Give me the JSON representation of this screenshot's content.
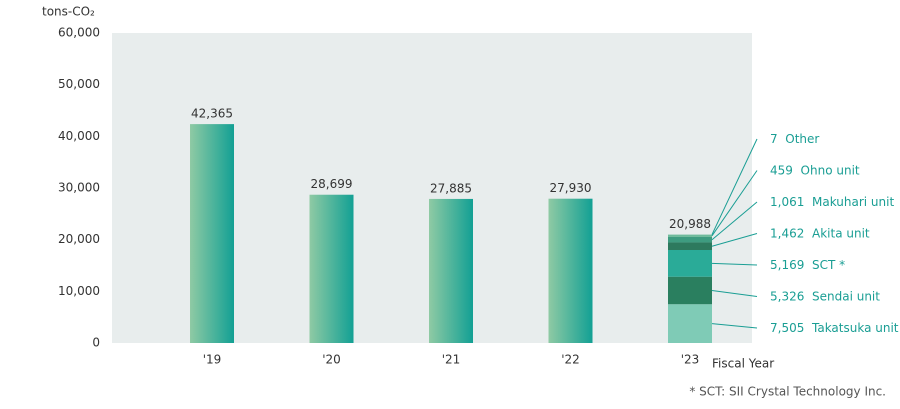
{
  "chart_data": {
    "type": "bar",
    "y_label": "tons-CO₂",
    "x_label": "Fiscal Year",
    "footnote": "* SCT: SII Crystal Technology Inc.",
    "categories": [
      "'19",
      "'20",
      "'21",
      "'22",
      "'23"
    ],
    "values": [
      42365,
      28699,
      27885,
      27930,
      20988
    ],
    "value_labels": [
      "42,365",
      "28,699",
      "27,885",
      "27,930",
      "20,988"
    ],
    "color": [
      "#8fcaa4",
      "#12a094"
    ],
    "ylim": [
      0,
      60000
    ],
    "yticks": [
      0,
      {
        "value": 10000,
        "label": "10,000"
      },
      {
        "value": 20000,
        "label": "20,000"
      },
      {
        "value": 30000,
        "label": "30,000"
      },
      {
        "value": 40000,
        "label": "40,000"
      },
      {
        "value": 50000,
        "label": "50,000"
      },
      {
        "value": 60000,
        "label": "60,000"
      }
    ],
    "grid": false,
    "series": [
      {
        "name": "Takatsuka unit",
        "color": "#7fcbb6",
        "values": [
          null,
          null,
          null,
          null,
          7505
        ],
        "value_labels": [
          null,
          null,
          null,
          null,
          "7,505"
        ]
      },
      {
        "name": "Sendai unit",
        "color": "#2a7f5f",
        "values": [
          null,
          null,
          null,
          null,
          5326
        ],
        "value_labels": [
          null,
          null,
          null,
          null,
          "5,326"
        ]
      },
      {
        "name": "SCT *",
        "color": "#2aab98",
        "values": [
          null,
          null,
          null,
          null,
          5169
        ],
        "value_labels": [
          null,
          null,
          null,
          null,
          "5,169"
        ]
      },
      {
        "name": "Akita unit",
        "color": "#2d7a5e",
        "values": [
          null,
          null,
          null,
          null,
          1462
        ],
        "value_labels": [
          null,
          null,
          null,
          null,
          "1,462"
        ]
      },
      {
        "name": "Makuhari unit",
        "color": "#3e9c80",
        "values": [
          null,
          null,
          null,
          null,
          1061
        ],
        "value_labels": [
          null,
          null,
          null,
          null,
          "1,061"
        ]
      },
      {
        "name": "Ohno unit",
        "color": "#6fbb9c",
        "values": [
          null,
          null,
          null,
          null,
          459
        ],
        "value_labels": [
          null,
          null,
          null,
          null,
          "459"
        ]
      },
      {
        "name": "Other",
        "color": "#9ed6c3",
        "values": [
          null,
          null,
          null,
          null,
          7
        ],
        "value_labels": [
          null,
          null,
          null,
          null,
          "7"
        ]
      }
    ]
  }
}
